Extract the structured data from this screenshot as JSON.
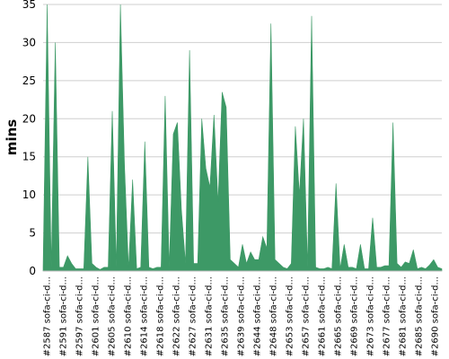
{
  "chart_data": {
    "type": "area",
    "title": "",
    "xlabel": "",
    "ylabel": "mins",
    "ylim": [
      0,
      35
    ],
    "yticks": [
      0,
      5,
      10,
      15,
      20,
      25,
      30,
      35
    ],
    "grid": "horizontal",
    "legend": "none",
    "color": "#3d9966",
    "x_tick_labels": [
      "#2587 sofa-ci-d...",
      "#2591 sofa-ci-d...",
      "#2597 sofa-ci-d...",
      "#2601 sofa-ci-d...",
      "#2605 sofa-ci-d...",
      "#2610 sofa-ci-d...",
      "#2614 sofa-ci-d...",
      "#2618 sofa-ci-d...",
      "#2622 sofa-ci-d...",
      "#2627 sofa-ci-d...",
      "#2631 sofa-ci-d...",
      "#2635 sofa-ci-d...",
      "#2639 sofa-ci-d...",
      "#2644 sofa-ci-d...",
      "#2648 sofa-ci-d...",
      "#2653 sofa-ci-d...",
      "#2657 sofa-ci-d...",
      "#2661 sofa-ci-d...",
      "#2665 sofa-ci-d...",
      "#2669 sofa-ci-d...",
      "#2673 sofa-ci-d...",
      "#2677 sofa-ci-d...",
      "#2681 sofa-ci-d...",
      "#2685 sofa-ci-d...",
      "#2690 sofa-ci-d..."
    ],
    "series": [
      {
        "values": [
          0.5,
          35,
          0.5,
          30,
          0.5,
          0.5,
          2,
          1,
          0.3,
          0.3,
          0.3,
          15,
          1,
          0.5,
          0.2,
          0.5,
          0.5,
          21,
          0.5,
          35,
          14,
          0.3,
          12,
          0.3,
          0.5,
          17,
          0.5,
          0.3,
          0.5,
          0.5,
          23,
          0.5,
          18,
          19.5,
          8,
          1,
          29,
          1,
          1,
          20,
          13.5,
          11,
          20.5,
          9,
          23.5,
          21.5,
          1.5,
          1,
          0.5,
          3.5,
          1,
          2.5,
          1.5,
          1.5,
          4.5,
          3,
          32.5,
          1.5,
          1,
          0.5,
          0.3,
          1,
          19,
          10,
          20,
          0.5,
          33.5,
          0.5,
          0.3,
          0.3,
          0.5,
          0.3,
          11.5,
          0.3,
          3.5,
          0.5,
          0.5,
          0.3,
          3.5,
          0.3,
          0.3,
          7,
          0.5,
          0.5,
          0.7,
          0.7,
          19.5,
          1,
          0.5,
          1.2,
          1,
          2.8,
          0.3,
          0.5,
          0.3,
          0.8,
          1.5,
          0.5,
          0.3
        ]
      }
    ]
  }
}
